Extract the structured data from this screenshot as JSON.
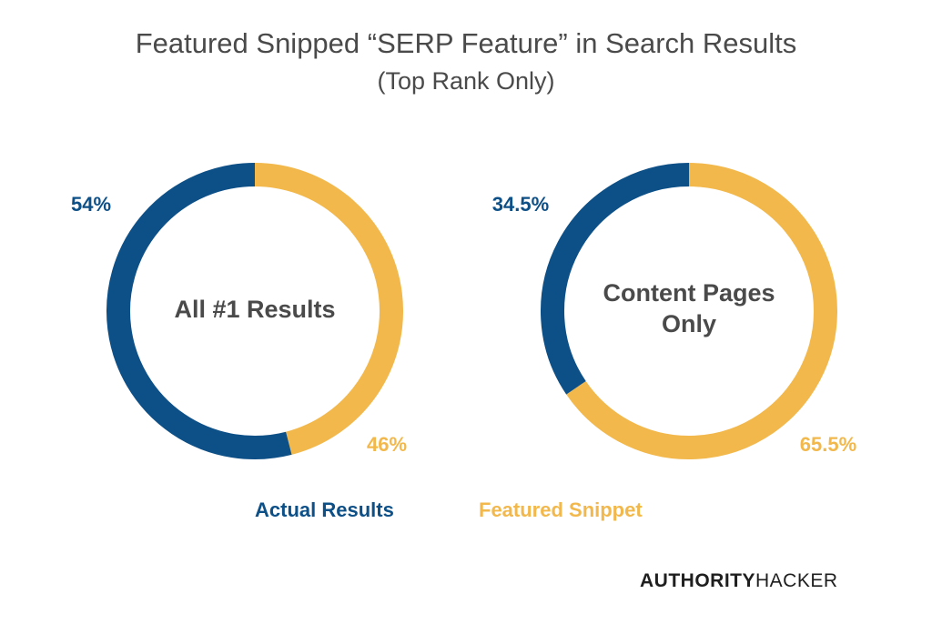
{
  "header": {
    "title": "Featured Snipped “SERP Feature” in Search Results",
    "subtitle": "(Top Rank Only)"
  },
  "colors": {
    "actual": "#0d4f87",
    "featured": "#f2b84b",
    "center_text": "#4a4a4a"
  },
  "chart_data": [
    {
      "type": "pie",
      "center_label": [
        "All #1 Results"
      ],
      "slices": [
        {
          "name": "Actual Results",
          "value": 54,
          "label": "54%"
        },
        {
          "name": "Featured Snippet",
          "value": 46,
          "label": "46%"
        }
      ]
    },
    {
      "type": "pie",
      "center_label": [
        "Content Pages",
        "Only"
      ],
      "slices": [
        {
          "name": "Actual Results",
          "value": 34.5,
          "label": "34.5%"
        },
        {
          "name": "Featured Snippet",
          "value": 65.5,
          "label": "65.5%"
        }
      ]
    }
  ],
  "legend": {
    "placement": "bottom",
    "items": [
      "Actual Results",
      "Featured Snippet"
    ]
  },
  "logo": {
    "bold_text": "AUTHORITY",
    "regular_text": "HACKER"
  }
}
